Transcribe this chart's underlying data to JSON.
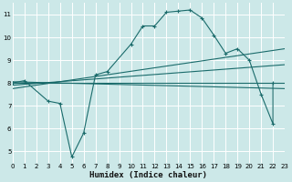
{
  "xlabel": "Humidex (Indice chaleur)",
  "bg_color": "#cce8e8",
  "grid_color": "#ffffff",
  "line_color": "#1a6b6b",
  "xlim": [
    0,
    23
  ],
  "ylim": [
    4.5,
    11.5
  ],
  "xticks": [
    0,
    1,
    2,
    3,
    4,
    5,
    6,
    7,
    8,
    9,
    10,
    11,
    12,
    13,
    14,
    15,
    16,
    17,
    18,
    19,
    20,
    21,
    22,
    23
  ],
  "yticks": [
    5,
    6,
    7,
    8,
    9,
    10,
    11
  ],
  "main_x": [
    0,
    1,
    3,
    4,
    5,
    6,
    7,
    8,
    10,
    11,
    12,
    13,
    14,
    15,
    16,
    17,
    18,
    19,
    20,
    21,
    22,
    22
  ],
  "main_y": [
    8.0,
    8.1,
    7.2,
    7.1,
    4.75,
    5.8,
    8.35,
    8.5,
    9.7,
    10.5,
    10.5,
    11.1,
    11.15,
    11.2,
    10.85,
    10.1,
    9.3,
    9.5,
    9.0,
    7.5,
    6.2,
    8.0
  ],
  "reg_lines": [
    {
      "x0": 0,
      "y0": 8.0,
      "x1": 23,
      "y1": 8.0
    },
    {
      "x0": 0,
      "y0": 7.9,
      "x1": 23,
      "y1": 8.8
    },
    {
      "x0": 0,
      "y0": 7.75,
      "x1": 23,
      "y1": 9.5
    },
    {
      "x0": 0,
      "y0": 8.05,
      "x1": 23,
      "y1": 7.75
    }
  ]
}
